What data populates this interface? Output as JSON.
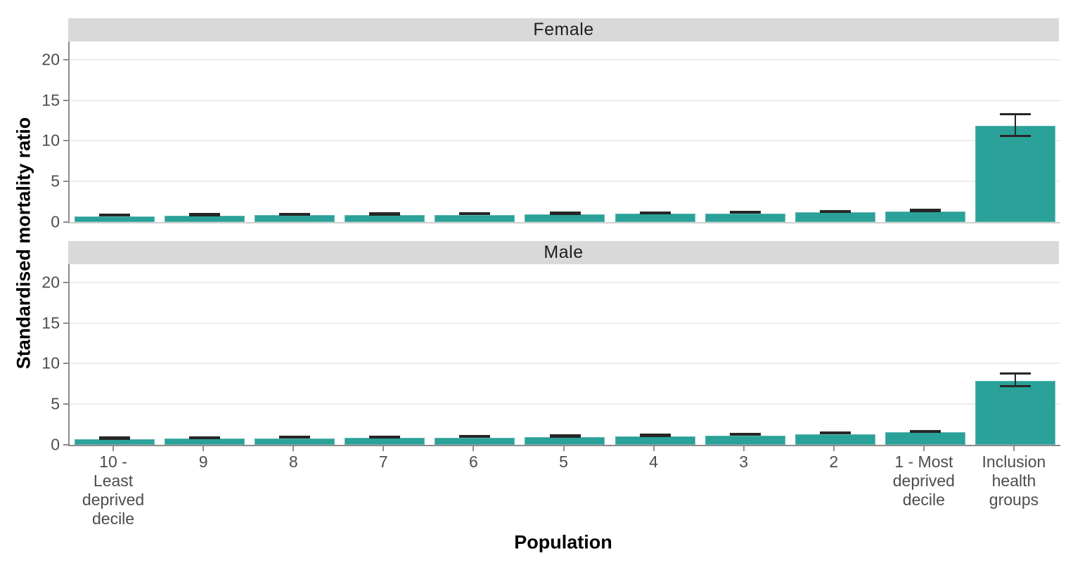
{
  "figure": {
    "y_axis_title": "Standardised mortality ratio",
    "x_axis_title": "Population"
  },
  "styles": {
    "bar_color": "#2aa199",
    "strip_background": "#d9d9d9",
    "gridline_color": "#ececec",
    "axis_line_color": "#8c8c8c",
    "tick_label_color": "#4d4d4d",
    "error_bar_color": "#262626"
  },
  "chart_data": {
    "type": "bar",
    "title": "",
    "xlabel": "Population",
    "ylabel": "Standardised mortality ratio",
    "legend": "none",
    "grid": "horizontal-major-only",
    "y_ticks": [
      0,
      5,
      10,
      15,
      20
    ],
    "ylim": [
      0,
      22.25
    ],
    "categories": [
      "10 -\nLeast\ndeprived\ndecile",
      "9",
      "8",
      "7",
      "6",
      "5",
      "4",
      "3",
      "2",
      "1 - Most\ndeprived\ndecile",
      "Inclusion\nhealth\ngroups"
    ],
    "facets": [
      {
        "label": "Female",
        "values": [
          0.72,
          0.78,
          0.83,
          0.87,
          0.91,
          0.95,
          1.0,
          1.08,
          1.18,
          1.32,
          11.9
        ],
        "ci_low": [
          0.66,
          0.72,
          0.77,
          0.81,
          0.85,
          0.89,
          0.94,
          1.02,
          1.12,
          1.25,
          10.5
        ],
        "ci_high": [
          0.78,
          0.84,
          0.89,
          0.93,
          0.97,
          1.01,
          1.06,
          1.14,
          1.24,
          1.39,
          13.2
        ]
      },
      {
        "label": "Male",
        "values": [
          0.7,
          0.75,
          0.8,
          0.85,
          0.9,
          0.97,
          1.05,
          1.15,
          1.32,
          1.52,
          7.9
        ],
        "ci_low": [
          0.65,
          0.7,
          0.75,
          0.8,
          0.85,
          0.91,
          0.99,
          1.09,
          1.26,
          1.45,
          7.1
        ],
        "ci_high": [
          0.75,
          0.8,
          0.85,
          0.9,
          0.95,
          1.03,
          1.11,
          1.21,
          1.38,
          1.59,
          8.7
        ]
      }
    ]
  }
}
